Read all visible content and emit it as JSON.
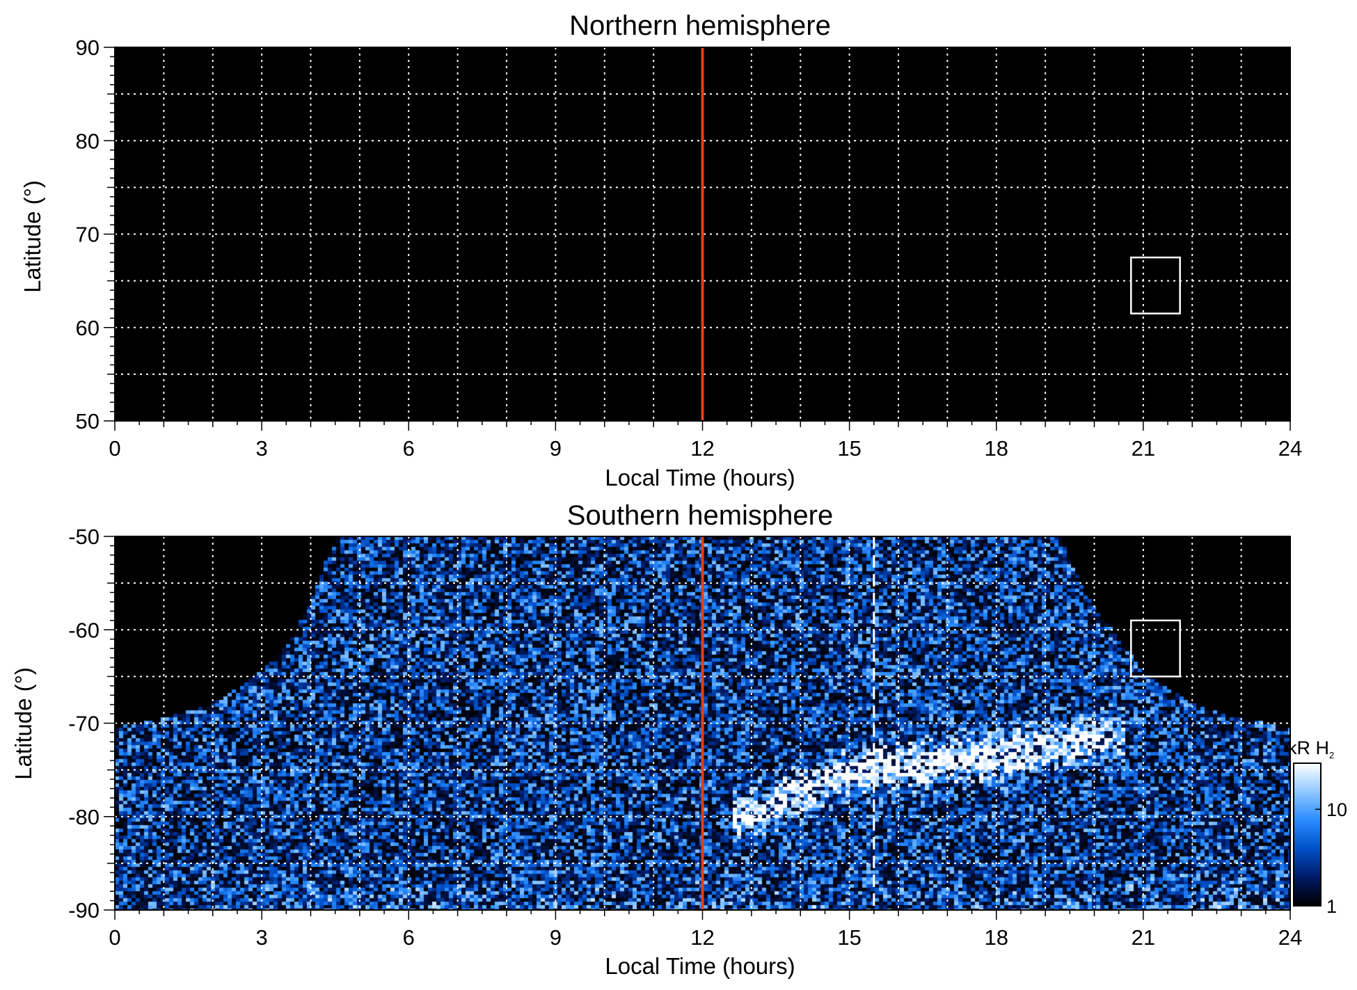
{
  "chart_data": [
    {
      "type": "heatmap",
      "title": "Northern hemisphere",
      "xlabel": "Local Time (hours)",
      "ylabel": "Latitude (°)",
      "xlim": [
        0,
        24
      ],
      "ylim": [
        50,
        90
      ],
      "x_ticks": [
        "0",
        "3",
        "6",
        "9",
        "12",
        "15",
        "18",
        "21",
        "24"
      ],
      "y_ticks": [
        "50",
        "60",
        "70",
        "80",
        "90"
      ],
      "grid": true,
      "background": "#000000",
      "noon_line": {
        "x": 12,
        "color": "#e0401a"
      },
      "box": {
        "x": [
          20.75,
          21.75
        ],
        "y": [
          61.5,
          67.5
        ]
      }
    },
    {
      "type": "heatmap",
      "title": "Southern hemisphere",
      "xlabel": "Local Time (hours)",
      "ylabel": "Latitude (°)",
      "xlim": [
        0,
        24
      ],
      "ylim": [
        -90,
        -50
      ],
      "x_ticks": [
        "0",
        "3",
        "6",
        "9",
        "12",
        "15",
        "18",
        "21",
        "24"
      ],
      "y_ticks": [
        "-90",
        "-80",
        "-70",
        "-60",
        "-50"
      ],
      "grid": true,
      "background": "#000000",
      "noon_line": {
        "x": 12,
        "color": "#e0401a"
      },
      "dashed_line": {
        "x": 15.5,
        "color": "#ffffff"
      },
      "box": {
        "x": [
          20.75,
          21.75
        ],
        "y": [
          -65,
          -59
        ]
      },
      "coverage_boundary": {
        "x": [
          0,
          1,
          2,
          3,
          3.5,
          4,
          4.5,
          19.3,
          19.8,
          20.5,
          21,
          22,
          23,
          24
        ],
        "y": [
          -70.5,
          -69.5,
          -68,
          -64.5,
          -61.5,
          -57,
          -50,
          -50,
          -56,
          -61,
          -64.5,
          -68,
          -69.5,
          -70.5
        ]
      },
      "aurora_band": {
        "x": [
          13,
          14,
          15,
          16,
          17,
          18,
          19,
          20
        ],
        "y": [
          -80,
          -77,
          -75.5,
          -74.5,
          -74,
          -73.5,
          -72.5,
          -71.5
        ]
      }
    }
  ],
  "colorbar": {
    "unit": "kR H",
    "unit_subscript": "2",
    "ticks": [
      "1",
      "10"
    ],
    "scale": "log",
    "range": [
      1,
      30
    ],
    "colors": [
      "#000000",
      "#001a66",
      "#0050c8",
      "#2a8cff",
      "#8fc8ff",
      "#ffffff"
    ]
  }
}
